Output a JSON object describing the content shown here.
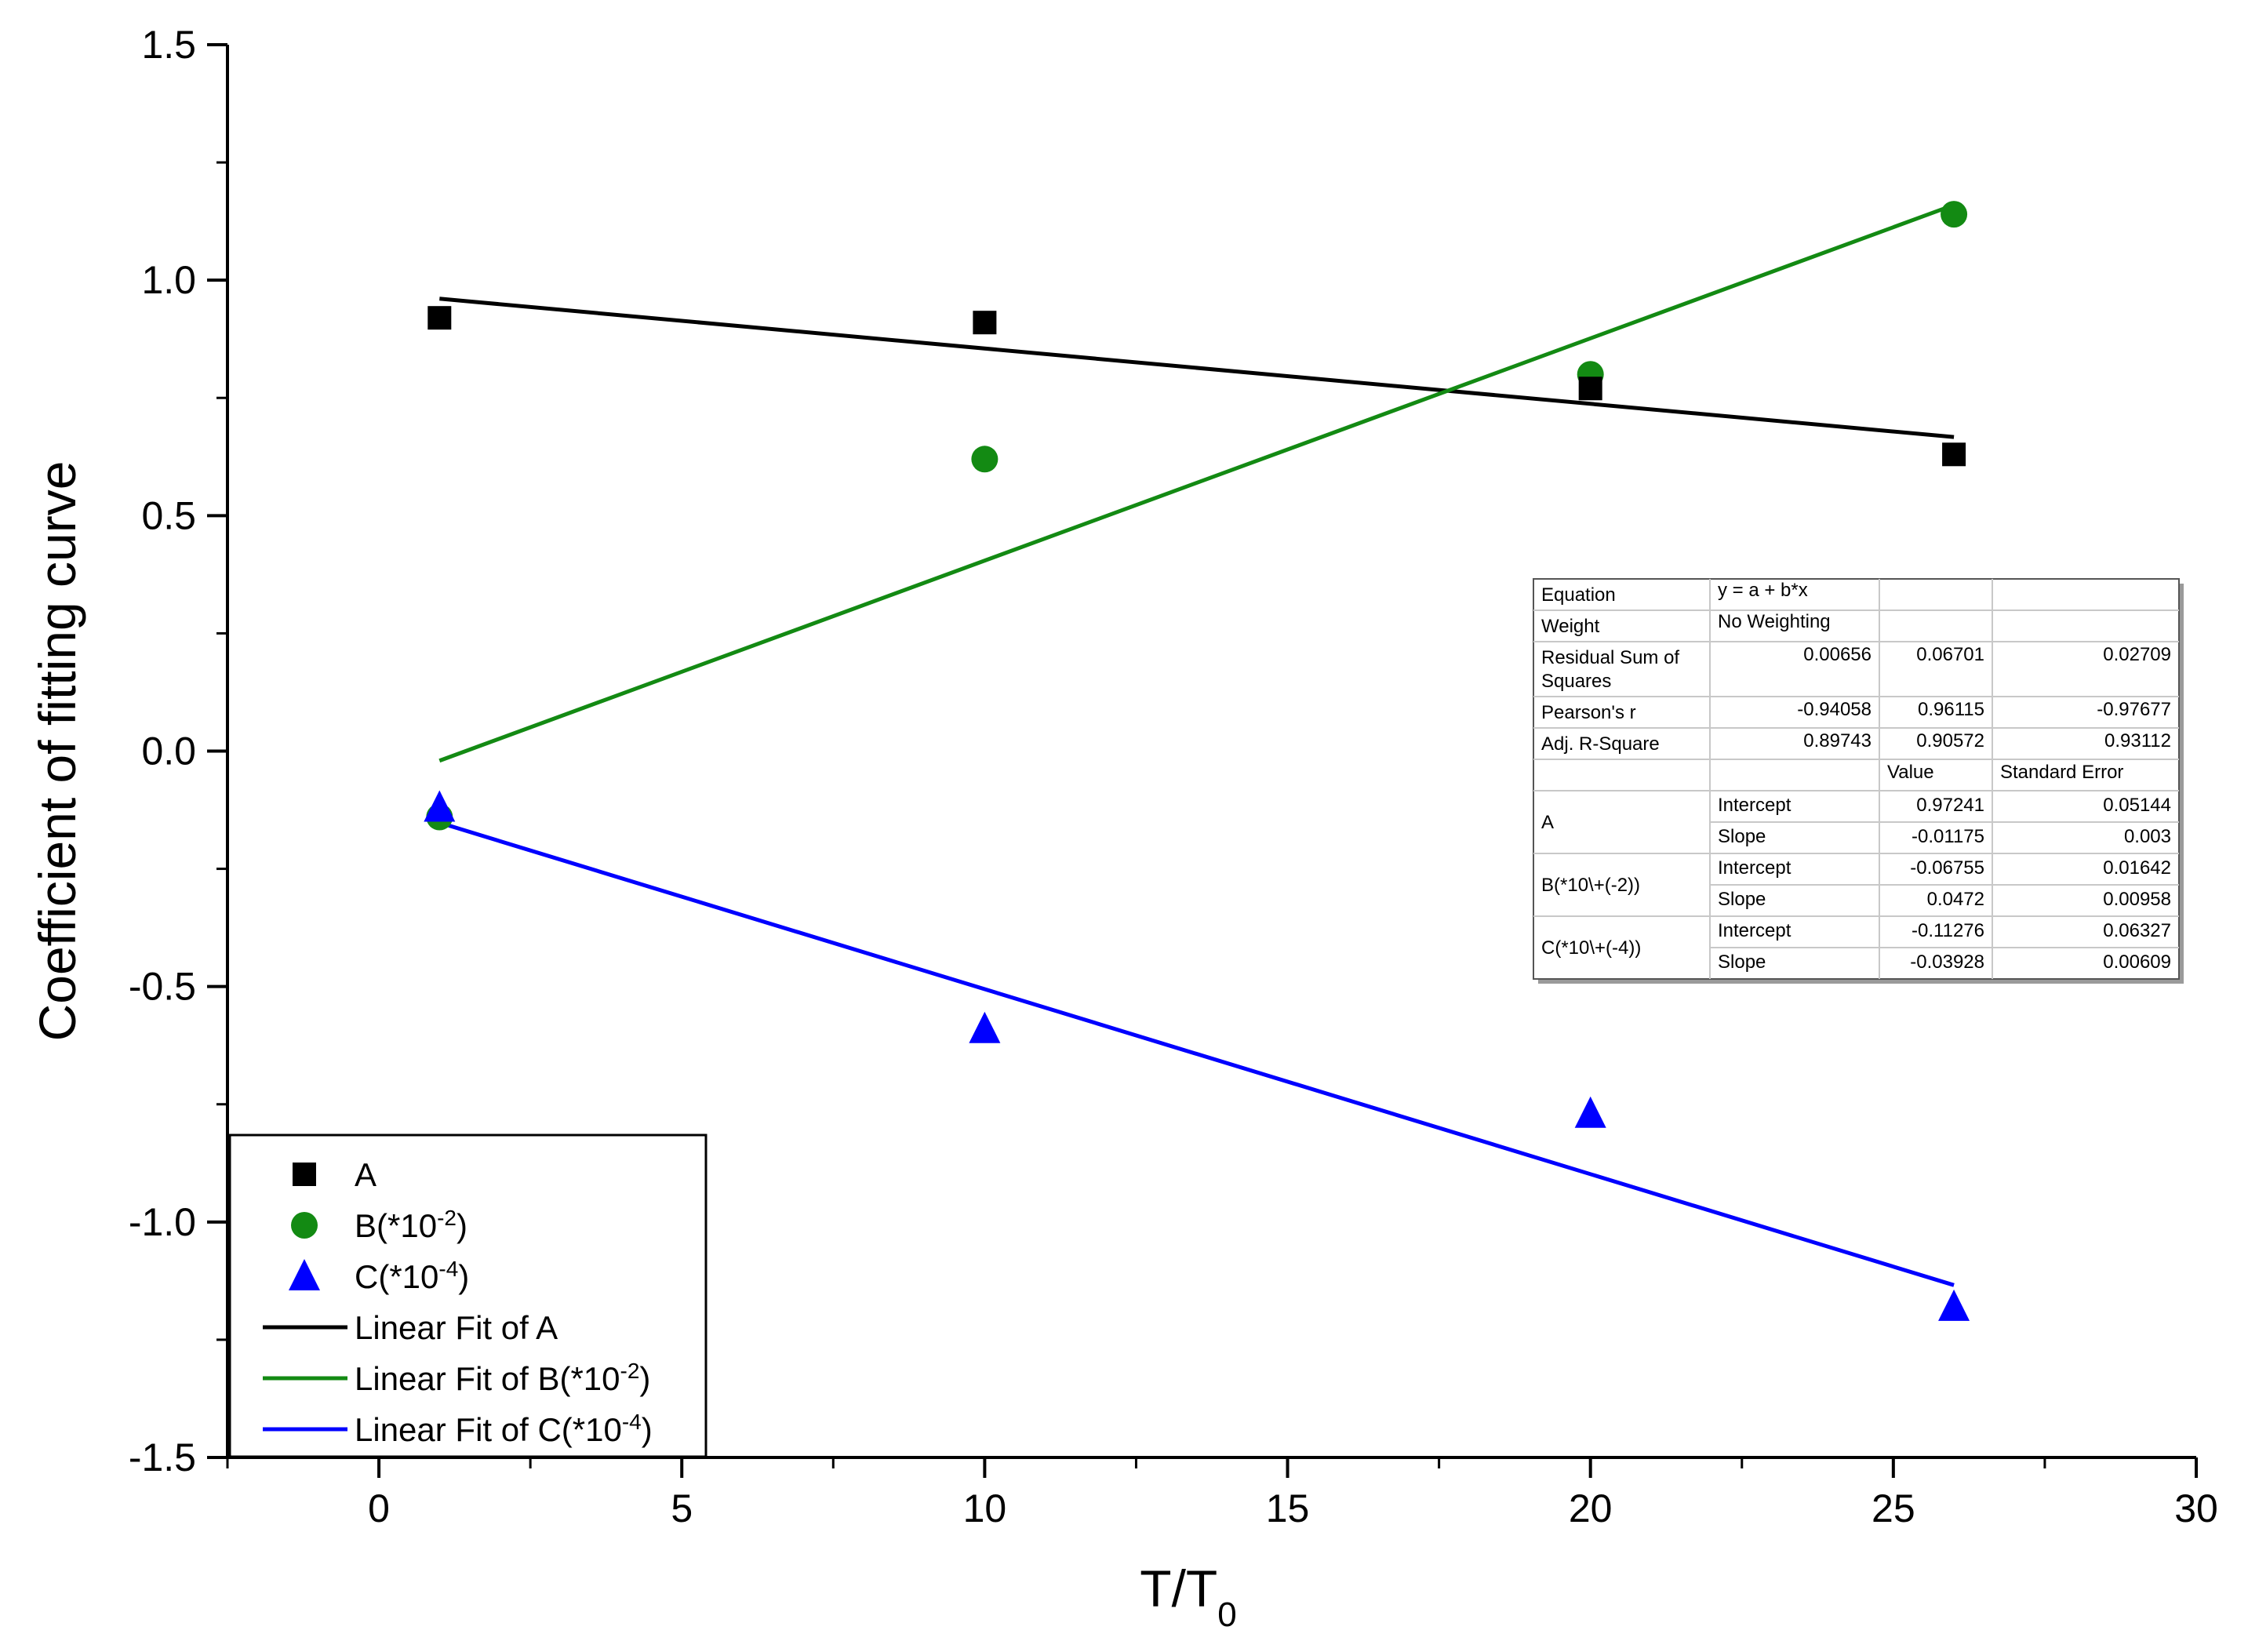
{
  "chart_data": {
    "type": "scatter",
    "title": "",
    "xlabel": "T/T",
    "xlabel_sub": "0",
    "ylabel": "Coefficient of fitting curve",
    "xlim": [
      -2.5,
      30
    ],
    "ylim": [
      -1.5,
      1.5
    ],
    "x_ticks": [
      0,
      5,
      10,
      15,
      20,
      25,
      30
    ],
    "x_tick_labels": [
      "0",
      "5",
      "10",
      "15",
      "20",
      "25",
      "30"
    ],
    "y_ticks": [
      -1.5,
      -1.0,
      -0.5,
      0.0,
      0.5,
      1.0,
      1.5
    ],
    "y_tick_labels": [
      "-1.5",
      "-1.0",
      "-0.5",
      "0.0",
      "0.5",
      "1.0",
      "1.5"
    ],
    "grid": false,
    "legend_position": "bottom-left",
    "series": [
      {
        "name": "A",
        "marker": "square",
        "color": "#000000",
        "x": [
          1,
          10,
          20,
          26
        ],
        "y": [
          0.92,
          0.91,
          0.77,
          0.63
        ]
      },
      {
        "name": "B(*10",
        "sup": "-2",
        "suffix": ")",
        "marker": "circle",
        "color": "#138a13",
        "x": [
          1,
          10,
          20,
          26
        ],
        "y": [
          -0.14,
          0.62,
          0.8,
          1.14
        ]
      },
      {
        "name": "C(*10",
        "sup": "-4",
        "suffix": ")",
        "marker": "triangle",
        "color": "#0000ff",
        "x": [
          1,
          10,
          20,
          26
        ],
        "y": [
          -0.12,
          -0.59,
          -0.77,
          -1.18
        ]
      }
    ],
    "fits": [
      {
        "name": "Linear Fit of A",
        "sup": "",
        "suffix": "",
        "color": "#000000",
        "intercept": 0.97241,
        "slope": -0.01175,
        "x_range": [
          1,
          26
        ]
      },
      {
        "name": "Linear Fit of B(*10",
        "sup": "-2",
        "suffix": ")",
        "color": "#138a13",
        "intercept": -0.06755,
        "slope": 0.0472,
        "x_range": [
          1,
          26
        ]
      },
      {
        "name": "Linear Fit of C(*10",
        "sup": "-4",
        "suffix": ")",
        "color": "#0000ff",
        "intercept": -0.11276,
        "slope": -0.03928,
        "x_range": [
          1,
          26
        ]
      }
    ],
    "stats_table": {
      "equation_label": "Equation",
      "equation": "y = a + b*x",
      "weight_label": "Weight",
      "weight": "No Weighting",
      "rss_label_1": "Residual Sum of",
      "rss_label_2": "Squares",
      "rss": [
        "0.00656",
        "0.06701",
        "0.02709"
      ],
      "pearson_label": "Pearson's r",
      "pearson": [
        "-0.94058",
        "0.96115",
        "-0.97677"
      ],
      "adjr_label": "Adj. R-Square",
      "adjr": [
        "0.89743",
        "0.90572",
        "0.93112"
      ],
      "value_header": "Value",
      "se_header": "Standard Error",
      "intercept_label": "Intercept",
      "slope_label": "Slope",
      "params": [
        {
          "name": "A",
          "intercept": "0.97241",
          "intercept_se": "0.05144",
          "slope": "-0.01175",
          "slope_se": "0.003"
        },
        {
          "name": "B(*10\\+(-2))",
          "intercept": "-0.06755",
          "intercept_se": "0.01642",
          "slope": "0.0472",
          "slope_se": "0.00958"
        },
        {
          "name": "C(*10\\+(-4))",
          "intercept": "-0.11276",
          "intercept_se": "0.06327",
          "slope": "-0.03928",
          "slope_se": "0.00609"
        }
      ]
    }
  }
}
